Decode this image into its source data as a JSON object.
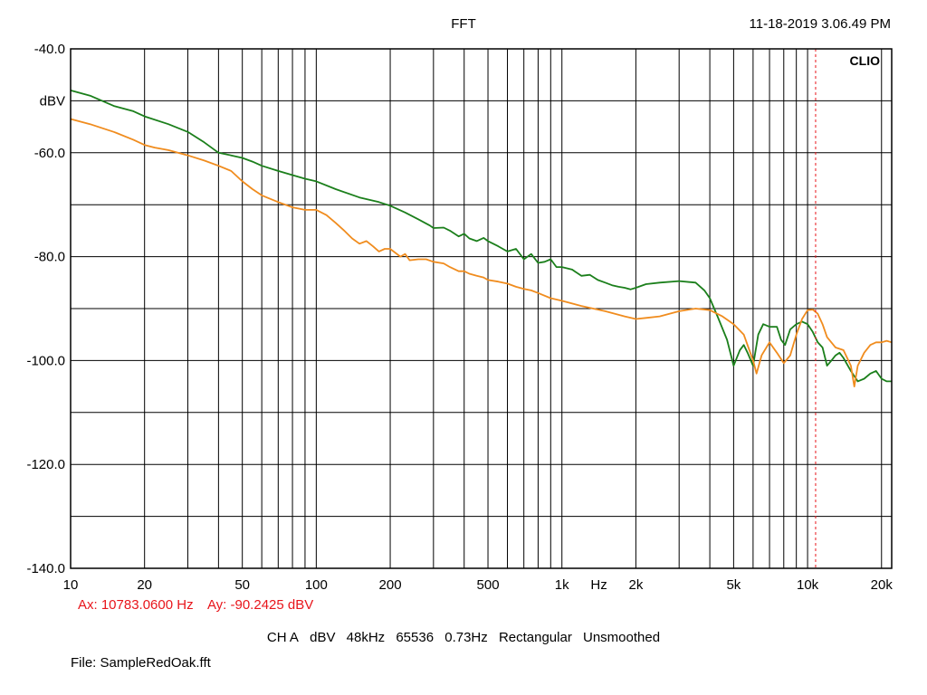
{
  "header": {
    "title": "FFT",
    "timestamp": "11-18-2019 3.06.49 PM"
  },
  "marker": {
    "ax_text": "Ax: 10783.0600 Hz",
    "ay_text": "Ay: -90.2425 dBV",
    "color": "#e8151b"
  },
  "settings": [
    "CH A",
    "dBV",
    "48kHz",
    "65536",
    "0.73Hz",
    "Rectangular",
    "Unsmoothed"
  ],
  "file_line": "File: SampleRedOak.fft",
  "chart_data": {
    "type": "line",
    "title": "FFT",
    "brand_label": "CLIO",
    "ylabel": "dBV",
    "xunit_label": "Hz",
    "xscale": "log",
    "xlim": [
      10,
      22000
    ],
    "ylim": [
      -140,
      -40
    ],
    "grid": true,
    "x_ticks": [
      {
        "v": 10,
        "label": "10"
      },
      {
        "v": 20,
        "label": "20"
      },
      {
        "v": 50,
        "label": "50"
      },
      {
        "v": 100,
        "label": "100"
      },
      {
        "v": 200,
        "label": "200"
      },
      {
        "v": 500,
        "label": "500"
      },
      {
        "v": 1000,
        "label": "1k"
      },
      {
        "v": 2000,
        "label": "2k"
      },
      {
        "v": 5000,
        "label": "5k"
      },
      {
        "v": 10000,
        "label": "10k"
      },
      {
        "v": 20000,
        "label": "20k"
      }
    ],
    "y_ticks": [
      {
        "v": -40,
        "label": "-40.0"
      },
      {
        "v": -60,
        "label": "-60.0"
      },
      {
        "v": -80,
        "label": "-80.0"
      },
      {
        "v": -100,
        "label": "-100.0"
      },
      {
        "v": -120,
        "label": "-120.0"
      },
      {
        "v": -140,
        "label": "-140.0"
      }
    ],
    "cursor": {
      "x": 10783.06,
      "y": -90.2425
    },
    "series": [
      {
        "color": "#1b7f1b",
        "x": [
          10,
          12,
          15,
          18,
          20,
          25,
          30,
          35,
          40,
          45,
          50,
          55,
          60,
          70,
          80,
          90,
          100,
          120,
          150,
          180,
          200,
          230,
          260,
          290,
          300,
          330,
          350,
          380,
          400,
          420,
          450,
          480,
          500,
          550,
          600,
          650,
          700,
          750,
          800,
          850,
          900,
          950,
          1000,
          1100,
          1200,
          1300,
          1400,
          1500,
          1600,
          1700,
          1800,
          1900,
          2000,
          2200,
          2500,
          3000,
          3500,
          3800,
          4000,
          4300,
          4700,
          5000,
          5300,
          5500,
          5700,
          6000,
          6300,
          6600,
          7000,
          7500,
          7800,
          8100,
          8500,
          9000,
          9500,
          10000,
          10500,
          11000,
          11500,
          12000,
          12500,
          13000,
          13500,
          14000,
          15000,
          16000,
          17000,
          18000,
          19000,
          20000,
          21000,
          22000
        ],
        "y": [
          -48,
          -49,
          -51,
          -52,
          -53,
          -54.5,
          -56,
          -58,
          -60,
          -60.5,
          -61,
          -61.7,
          -62.5,
          -63.5,
          -64.3,
          -65,
          -65.5,
          -67,
          -68.6,
          -69.5,
          -70.2,
          -71.5,
          -72.8,
          -74,
          -74.5,
          -74.4,
          -75,
          -76.1,
          -75.6,
          -76.5,
          -77,
          -76.4,
          -77,
          -78,
          -79,
          -78.5,
          -80.5,
          -79.5,
          -81.2,
          -81,
          -80.5,
          -82,
          -82,
          -82.5,
          -83.7,
          -83.5,
          -84.5,
          -85,
          -85.5,
          -85.8,
          -86,
          -86.3,
          -86,
          -85.3,
          -85,
          -84.7,
          -85,
          -86.5,
          -88,
          -91.5,
          -96,
          -101,
          -98,
          -97,
          -98.5,
          -101,
          -95,
          -93,
          -93.5,
          -93.5,
          -96,
          -97,
          -94,
          -93,
          -92.5,
          -93,
          -94.5,
          -96.5,
          -97.5,
          -101,
          -100,
          -99,
          -98.5,
          -99.5,
          -102,
          -104,
          -103.5,
          -102.5,
          -102,
          -103.5,
          -104,
          -104
        ]
      },
      {
        "color": "#f08c1e",
        "x": [
          10,
          12,
          15,
          18,
          20,
          22,
          25,
          30,
          35,
          40,
          45,
          50,
          55,
          60,
          70,
          80,
          90,
          100,
          110,
          120,
          130,
          140,
          150,
          160,
          170,
          180,
          190,
          200,
          220,
          230,
          240,
          260,
          280,
          300,
          330,
          350,
          380,
          400,
          420,
          450,
          480,
          500,
          550,
          600,
          650,
          700,
          750,
          800,
          900,
          1000,
          1200,
          1500,
          1800,
          2000,
          2200,
          2500,
          3000,
          3500,
          4000,
          4500,
          5000,
          5500,
          6000,
          6200,
          6500,
          7000,
          7500,
          8000,
          8500,
          9000,
          9500,
          10000,
          10500,
          11000,
          11500,
          12000,
          13000,
          14000,
          15000,
          15500,
          16000,
          17000,
          18000,
          19000,
          20000,
          21000,
          22000
        ],
        "y": [
          -53.5,
          -54.5,
          -56,
          -57.5,
          -58.5,
          -59,
          -59.5,
          -60.5,
          -61.5,
          -62.5,
          -63.5,
          -65.5,
          -67,
          -68.2,
          -69.5,
          -70.5,
          -71,
          -71,
          -72,
          -73.5,
          -75,
          -76.5,
          -77.5,
          -77,
          -78,
          -79,
          -78.5,
          -78.5,
          -80,
          -79.5,
          -80.7,
          -80.5,
          -80.5,
          -81,
          -81.3,
          -82,
          -82.8,
          -82.8,
          -83.3,
          -83.7,
          -84,
          -84.5,
          -84.8,
          -85.2,
          -85.8,
          -86.2,
          -86.5,
          -87,
          -88,
          -88.5,
          -89.5,
          -90.5,
          -91.5,
          -92,
          -91.8,
          -91.5,
          -90.5,
          -90,
          -90.3,
          -91.5,
          -93,
          -95,
          -100,
          -102.5,
          -99,
          -96.5,
          -98.5,
          -100.5,
          -99,
          -95,
          -92,
          -90.3,
          -90.2,
          -91,
          -93,
          -95.5,
          -97.5,
          -98,
          -101,
          -105,
          -101,
          -98.5,
          -97,
          -96.5,
          -96.5,
          -96.2,
          -96.5
        ]
      }
    ]
  }
}
